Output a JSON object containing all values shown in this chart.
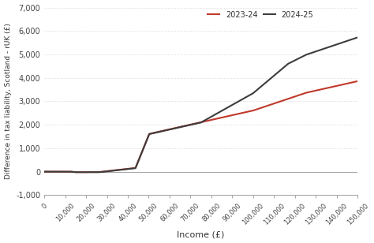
{
  "title": "",
  "xlabel": "Income (£)",
  "ylabel": "Difference in tax liability, Scotland - rUK (£)",
  "xlim": [
    0,
    150000
  ],
  "ylim": [
    -1000,
    7000
  ],
  "xticks": [
    0,
    10000,
    20000,
    30000,
    40000,
    50000,
    60000,
    70000,
    80000,
    90000,
    100000,
    110000,
    120000,
    130000,
    140000,
    150000
  ],
  "yticks": [
    -1000,
    0,
    1000,
    2000,
    3000,
    4000,
    5000,
    6000,
    7000
  ],
  "line_2023_color": "#c0392b",
  "line_2024_color": "#3d3d3d",
  "legend_labels": [
    "2023-24",
    "2024-25"
  ],
  "background_color": "#ffffff",
  "grid_color": "#d0d0d0"
}
